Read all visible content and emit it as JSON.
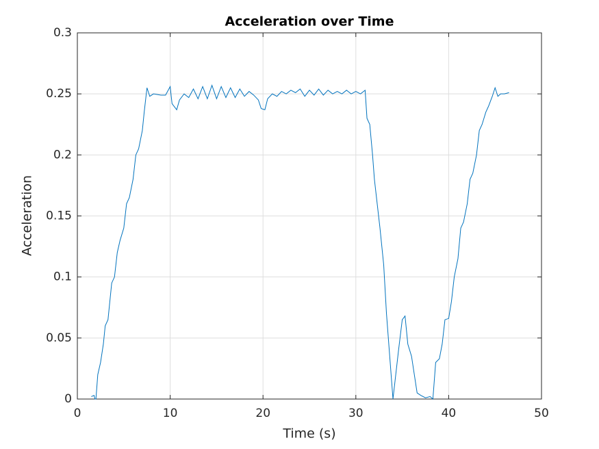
{
  "chart_data": {
    "type": "line",
    "title": "Acceleration over Time",
    "xlabel": "Time (s)",
    "ylabel": "Acceleration",
    "grid": true,
    "color": "#0072bd",
    "xlim": [
      0,
      50
    ],
    "xticks": [
      0,
      10,
      20,
      30,
      40,
      50
    ],
    "ylim": [
      0,
      0.3
    ],
    "yticks": [
      0,
      0.05,
      0.1,
      0.15,
      0.2,
      0.25,
      0.3
    ],
    "x": [
      1.5,
      1.8,
      1.9,
      2.0,
      2.2,
      2.5,
      2.8,
      3.0,
      3.3,
      3.5,
      3.7,
      4.0,
      4.3,
      4.6,
      5.0,
      5.3,
      5.6,
      6.0,
      6.3,
      6.6,
      7.0,
      7.2,
      7.5,
      7.8,
      8.2,
      9.0,
      9.5,
      10.0,
      10.2,
      10.7,
      11.0,
      11.5,
      12.0,
      12.5,
      13.0,
      13.5,
      14.0,
      14.5,
      15.0,
      15.5,
      16.0,
      16.5,
      17.0,
      17.5,
      18.0,
      18.5,
      19.0,
      19.5,
      19.8,
      20.2,
      20.5,
      21.0,
      21.5,
      22.0,
      22.5,
      23.0,
      23.5,
      24.0,
      24.5,
      25.0,
      25.5,
      26.0,
      26.5,
      27.0,
      27.5,
      28.0,
      28.5,
      29.0,
      29.5,
      30.0,
      30.5,
      31.0,
      31.2,
      31.5,
      31.8,
      32.0,
      32.3,
      32.6,
      33.0,
      33.3,
      33.7,
      34.0,
      34.3,
      34.6,
      35.0,
      35.3,
      35.6,
      36.0,
      36.3,
      36.6,
      37.0,
      37.5,
      38.0,
      38.3,
      38.6,
      39.0,
      39.3,
      39.6,
      40.0,
      40.3,
      40.6,
      41.0,
      41.3,
      41.6,
      42.0,
      42.3,
      42.6,
      43.0,
      43.3,
      43.6,
      44.0,
      44.3,
      44.7,
      45.0,
      45.3,
      45.6,
      46.0,
      46.5
    ],
    "values": [
      0.002,
      0.003,
      0.0,
      0.0,
      0.02,
      0.03,
      0.045,
      0.06,
      0.065,
      0.08,
      0.095,
      0.1,
      0.12,
      0.13,
      0.14,
      0.16,
      0.165,
      0.18,
      0.2,
      0.205,
      0.22,
      0.235,
      0.255,
      0.248,
      0.25,
      0.249,
      0.249,
      0.256,
      0.242,
      0.237,
      0.245,
      0.25,
      0.247,
      0.254,
      0.246,
      0.256,
      0.246,
      0.257,
      0.246,
      0.256,
      0.247,
      0.255,
      0.247,
      0.254,
      0.248,
      0.252,
      0.249,
      0.245,
      0.238,
      0.237,
      0.246,
      0.25,
      0.248,
      0.252,
      0.25,
      0.253,
      0.251,
      0.254,
      0.248,
      0.253,
      0.249,
      0.254,
      0.249,
      0.253,
      0.25,
      0.252,
      0.25,
      0.253,
      0.25,
      0.252,
      0.25,
      0.253,
      0.23,
      0.225,
      0.2,
      0.18,
      0.16,
      0.14,
      0.11,
      0.07,
      0.03,
      0.0,
      0.02,
      0.04,
      0.065,
      0.068,
      0.045,
      0.035,
      0.02,
      0.005,
      0.003,
      0.001,
      0.002,
      0.0,
      0.03,
      0.033,
      0.045,
      0.065,
      0.066,
      0.08,
      0.1,
      0.115,
      0.14,
      0.145,
      0.16,
      0.18,
      0.185,
      0.2,
      0.22,
      0.225,
      0.235,
      0.24,
      0.248,
      0.255,
      0.248,
      0.25,
      0.25,
      0.251
    ]
  }
}
